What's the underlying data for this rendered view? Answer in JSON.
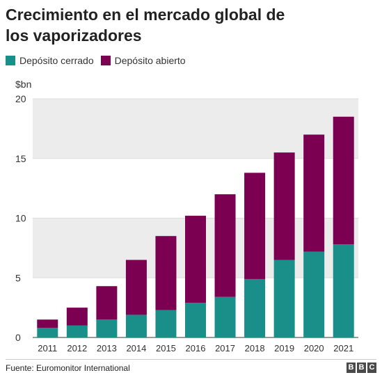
{
  "header": {
    "title_line1": "Crecimiento en el mercado global de",
    "title_line2": "los vaporizadores"
  },
  "chart_data": {
    "type": "bar",
    "stacked": true,
    "categories": [
      "2011",
      "2012",
      "2013",
      "2014",
      "2015",
      "2016",
      "2017",
      "2018",
      "2019",
      "2020",
      "2021"
    ],
    "series": [
      {
        "name": "Depósito cerrado",
        "color": "#1a8f8a",
        "values": [
          0.8,
          1.0,
          1.5,
          1.9,
          2.3,
          2.9,
          3.4,
          4.9,
          6.5,
          7.2,
          7.8
        ]
      },
      {
        "name": "Depósito abierto",
        "color": "#7b0051",
        "values": [
          0.7,
          1.5,
          2.8,
          4.6,
          6.2,
          7.3,
          8.6,
          8.9,
          9.0,
          9.8,
          10.7
        ]
      }
    ],
    "ylabel": "$bn",
    "ylim": [
      0,
      20
    ],
    "yticks": [
      0,
      5,
      10,
      15,
      20
    ],
    "legend_position": "top-left",
    "grid": "alternating horizontal bands"
  },
  "footer": {
    "source": "Fuente: Euromonitor International",
    "logo_letters": [
      "B",
      "B",
      "C"
    ]
  }
}
